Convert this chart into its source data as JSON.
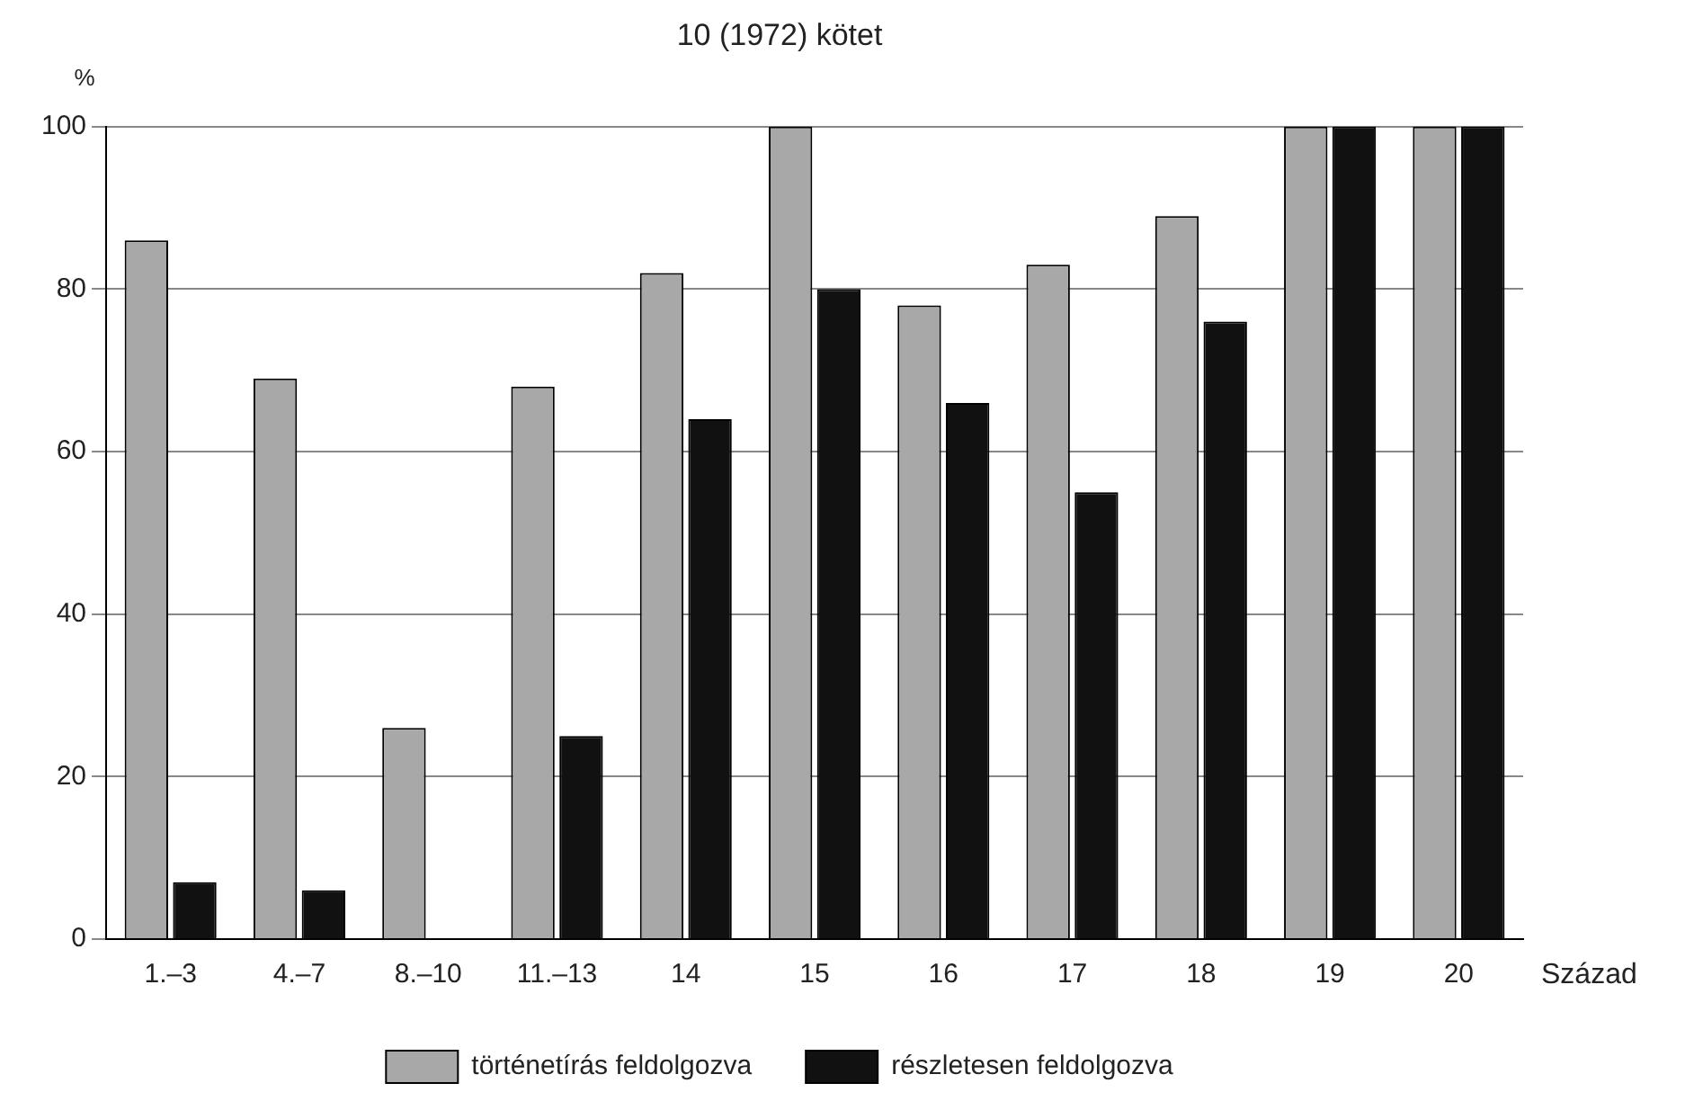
{
  "chart_data": {
    "type": "bar",
    "title": "10 (1972) kötet",
    "xlabel": "Század",
    "ylabel": "%",
    "categories": [
      "1.–3",
      "4.–7",
      "8.–10",
      "11.–13",
      "14",
      "15",
      "16",
      "17",
      "18",
      "19",
      "20"
    ],
    "series": [
      {
        "name": "történetírás feldolgozva",
        "color": "#a8a8a8",
        "values": [
          86,
          69,
          26,
          68,
          82,
          100,
          78,
          83,
          89,
          100,
          100
        ]
      },
      {
        "name": "részletesen feldolgozva",
        "color": "#111111",
        "values": [
          7,
          6,
          0,
          25,
          64,
          80,
          66,
          55,
          76,
          100,
          100
        ]
      }
    ],
    "ylim": [
      0,
      100
    ],
    "yticks": [
      0,
      20,
      40,
      60,
      80,
      100
    ],
    "grid": "y",
    "legend": "bottom"
  }
}
